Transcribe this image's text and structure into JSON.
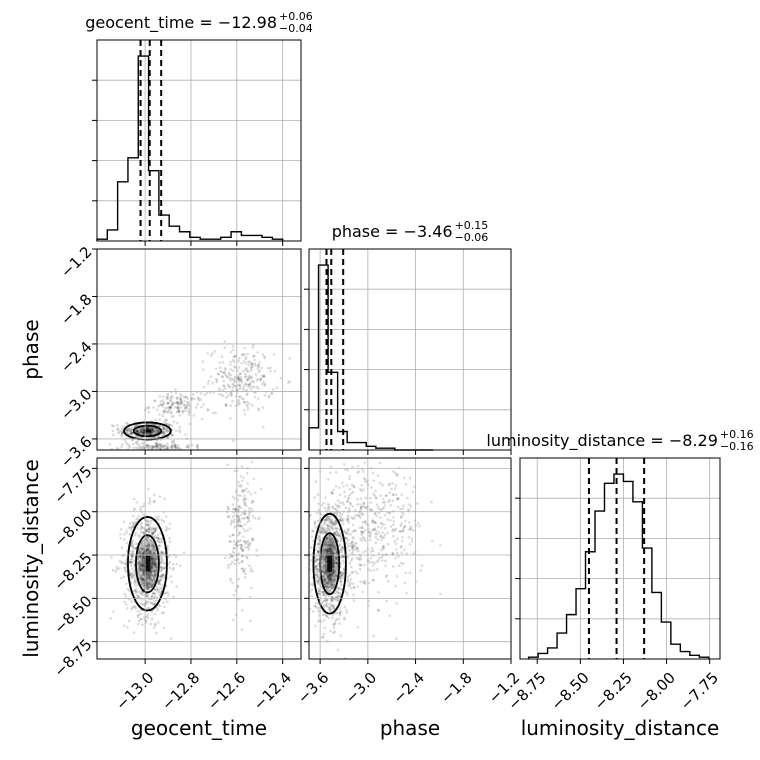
{
  "chart_data": {
    "type": "scatter",
    "subtype": "corner-plot",
    "parameters": [
      "geocent_time",
      "phase",
      "luminosity_distance"
    ],
    "axis_labels": {
      "geocent_time": "geocent_time",
      "phase": "phase",
      "luminosity_distance": "luminosity_distance"
    },
    "ranges": {
      "geocent_time": [
        -13.21,
        -12.32
      ],
      "phase": [
        -3.74,
        -1.2
      ],
      "luminosity_distance": [
        -8.85,
        -7.69
      ]
    },
    "ticks": {
      "geocent_time": [
        -13.0,
        -12.8,
        -12.6,
        -12.4
      ],
      "phase": [
        -3.6,
        -3.0,
        -2.4,
        -1.8,
        -1.2
      ],
      "luminosity_distance": [
        -8.75,
        -8.5,
        -8.25,
        -8.0,
        -7.75
      ]
    },
    "tick_labels": {
      "geocent_time": [
        "−13.0",
        "−12.8",
        "−12.6",
        "−12.4"
      ],
      "phase": [
        "−3.6",
        "−3.0",
        "−2.4",
        "−1.8",
        "−1.2"
      ],
      "luminosity_distance": [
        "−8.75",
        "−8.50",
        "−8.25",
        "−8.00",
        "−7.75"
      ]
    },
    "titles": [
      {
        "param": "geocent_time",
        "main": "geocent_time = −12.98",
        "sup": "+0.06",
        "sub": "−0.04"
      },
      {
        "param": "phase",
        "main": "phase = −3.46",
        "sup": "+0.15",
        "sub": "−0.06"
      },
      {
        "param": "luminosity_distance",
        "main": "luminosity_distance = −8.29",
        "sup": "+0.16",
        "sub": "−0.16"
      }
    ],
    "quantiles": {
      "geocent_time": [
        -13.02,
        -12.98,
        -12.93
      ],
      "phase": [
        -3.52,
        -3.46,
        -3.31
      ],
      "luminosity_distance": [
        -8.45,
        -8.29,
        -8.13
      ]
    },
    "histograms": {
      "geocent_time": {
        "edges": [
          -13.21,
          -13.165,
          -13.12,
          -13.075,
          -13.03,
          -12.985,
          -12.94,
          -12.895,
          -12.85,
          -12.805,
          -12.76,
          -12.715,
          -12.67,
          -12.625,
          -12.58,
          -12.535,
          -12.49,
          -12.445,
          -12.4
        ],
        "counts": [
          1,
          6,
          32,
          45,
          100,
          38,
          14,
          8,
          5,
          2,
          1,
          1,
          2,
          5,
          3,
          3,
          2,
          1
        ]
      },
      "phase": {
        "edges": [
          -3.74,
          -3.62,
          -3.5,
          -3.38,
          -3.26,
          -3.14,
          -3.02,
          -2.9,
          -2.78,
          -2.66,
          -2.54,
          -2.42,
          -2.3,
          -2.18
        ],
        "counts": [
          12,
          100,
          42,
          10,
          4,
          4,
          2,
          1,
          1,
          0,
          0,
          0,
          0
        ],
        "note": ""
      },
      "luminosity_distance": {
        "edges": [
          -8.8,
          -8.745,
          -8.69,
          -8.635,
          -8.58,
          -8.525,
          -8.47,
          -8.415,
          -8.36,
          -8.305,
          -8.25,
          -8.195,
          -8.14,
          -8.085,
          -8.03,
          -7.975,
          -7.92,
          -7.865,
          -7.81,
          -7.755
        ],
        "counts": [
          1,
          3,
          6,
          14,
          24,
          38,
          58,
          80,
          95,
          100,
          96,
          85,
          60,
          36,
          20,
          8,
          4,
          2,
          1
        ]
      }
    },
    "scatter_clusters": {
      "geocent_time_vs_phase": [
        {
          "x": -12.99,
          "y": -3.5,
          "sx": 0.06,
          "sy": 0.06,
          "n": 380
        },
        {
          "x": -12.86,
          "y": -3.18,
          "sx": 0.06,
          "sy": 0.08,
          "n": 140
        },
        {
          "x": -12.58,
          "y": -2.85,
          "sx": 0.07,
          "sy": 0.2,
          "n": 260
        },
        {
          "x": -12.95,
          "y": -3.7,
          "sx": 0.08,
          "sy": 0.03,
          "n": 120
        }
      ],
      "geocent_time_vs_luminosity_distance": [
        {
          "x": -12.99,
          "y": -8.3,
          "sx": 0.05,
          "sy": 0.15,
          "n": 900
        },
        {
          "x": -12.58,
          "y": -8.1,
          "sx": 0.03,
          "sy": 0.2,
          "n": 220
        }
      ],
      "phase_vs_luminosity_distance": [
        {
          "x": -3.48,
          "y": -8.3,
          "sx": 0.12,
          "sy": 0.16,
          "n": 900
        },
        {
          "x": -3.0,
          "y": -8.1,
          "sx": 0.35,
          "sy": 0.18,
          "n": 500
        }
      ]
    },
    "grid": true
  }
}
